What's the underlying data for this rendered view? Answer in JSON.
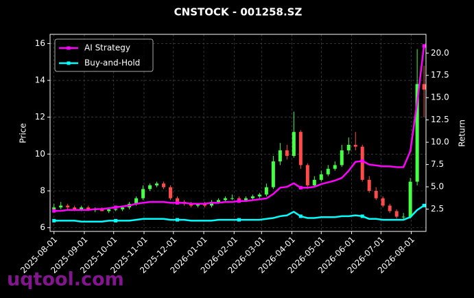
{
  "chart_data": {
    "type": "candlestick",
    "title": "CNSTOCK - 001258.SZ",
    "y_label": "Price",
    "y2_label": "Return",
    "watermark": "uqtool.com",
    "xlim": [
      "2025-07-28",
      "2026-08-16"
    ],
    "xticks": [
      "2025-08-01",
      "2025-09-01",
      "2025-10-01",
      "2025-11-01",
      "2025-12-01",
      "2026-01-01",
      "2026-02-01",
      "2026-03-01",
      "2026-04-01",
      "2026-05-01",
      "2026-06-01",
      "2026-07-01",
      "2026-08-01"
    ],
    "ylim": [
      5.8,
      16.5
    ],
    "yticks": [
      6,
      8,
      10,
      12,
      14,
      16
    ],
    "y2lim": [
      0,
      22.1
    ],
    "y2ticks": [
      2.5,
      {
        "value": 5,
        "label": "5.0"
      },
      7.5,
      {
        "value": 10,
        "label": "10.0"
      },
      12.5,
      {
        "value": 15,
        "label": "15.0"
      },
      17.5,
      {
        "value": 20,
        "label": "20.0"
      }
    ],
    "grid": true,
    "legend": "upper left",
    "up_color": "#44ff44",
    "down_color": "#ff4a4a",
    "x": [
      "2025-08-01",
      "2025-08-08",
      "2025-08-15",
      "2025-08-22",
      "2025-08-29",
      "2025-09-05",
      "2025-09-12",
      "2025-09-19",
      "2025-09-26",
      "2025-10-03",
      "2025-10-10",
      "2025-10-17",
      "2025-10-24",
      "2025-10-31",
      "2025-11-07",
      "2025-11-14",
      "2025-11-21",
      "2025-11-28",
      "2025-12-05",
      "2025-12-12",
      "2025-12-19",
      "2025-12-26",
      "2026-01-02",
      "2026-01-09",
      "2026-01-16",
      "2026-01-23",
      "2026-01-30",
      "2026-02-06",
      "2026-02-13",
      "2026-02-20",
      "2026-02-27",
      "2026-03-06",
      "2026-03-13",
      "2026-03-20",
      "2026-03-27",
      "2026-04-03",
      "2026-04-10",
      "2026-04-17",
      "2026-04-24",
      "2026-05-01",
      "2026-05-08",
      "2026-05-15",
      "2026-05-22",
      "2026-05-29",
      "2026-06-05",
      "2026-06-12",
      "2026-06-19",
      "2026-06-26",
      "2026-07-03",
      "2026-07-10",
      "2026-07-17",
      "2026-07-24",
      "2026-07-31",
      "2026-08-07",
      "2026-08-14"
    ],
    "open": [
      7.0,
      7.1,
      7.2,
      7.1,
      7.0,
      7.1,
      6.95,
      7.0,
      6.9,
      7.0,
      7.0,
      7.1,
      7.3,
      7.6,
      8.1,
      8.3,
      8.4,
      8.2,
      7.6,
      7.4,
      7.3,
      7.2,
      7.3,
      7.2,
      7.4,
      7.5,
      7.6,
      7.6,
      7.5,
      7.6,
      7.7,
      7.8,
      8.2,
      9.6,
      10.2,
      9.9,
      11.2,
      9.4,
      8.3,
      8.6,
      8.9,
      9.2,
      9.4,
      10.2,
      10.5,
      10.4,
      8.6,
      8.0,
      7.6,
      7.2,
      6.9,
      6.6,
      6.6,
      8.5,
      13.8
    ],
    "high": [
      7.3,
      7.4,
      7.3,
      7.2,
      7.2,
      7.2,
      7.1,
      7.1,
      7.05,
      7.1,
      7.2,
      7.4,
      7.7,
      8.3,
      8.4,
      8.5,
      8.5,
      8.3,
      7.7,
      7.5,
      7.4,
      7.3,
      7.4,
      7.5,
      7.6,
      7.7,
      7.8,
      7.7,
      7.7,
      7.8,
      7.9,
      8.4,
      9.9,
      10.6,
      10.5,
      12.3,
      11.3,
      9.5,
      8.8,
      9.1,
      9.4,
      9.6,
      10.5,
      10.9,
      11.2,
      10.5,
      8.8,
      8.2,
      7.7,
      7.3,
      7.0,
      6.8,
      8.7,
      15.7,
      14.8
    ],
    "low": [
      6.9,
      7.0,
      7.0,
      6.9,
      6.9,
      6.9,
      6.85,
      6.9,
      6.8,
      6.9,
      6.9,
      7.0,
      7.2,
      7.5,
      8.0,
      8.2,
      8.1,
      7.5,
      7.3,
      7.2,
      7.1,
      7.1,
      7.1,
      7.1,
      7.3,
      7.4,
      7.5,
      7.4,
      7.4,
      7.5,
      7.6,
      7.7,
      8.1,
      9.4,
      9.7,
      9.8,
      9.2,
      8.1,
      8.2,
      8.5,
      8.8,
      9.1,
      9.3,
      10.0,
      10.2,
      8.5,
      7.9,
      7.5,
      7.1,
      6.8,
      6.5,
      6.4,
      6.5,
      8.3,
      12.0
    ],
    "close": [
      7.1,
      7.2,
      7.1,
      7.0,
      7.1,
      6.95,
      7.0,
      6.9,
      7.0,
      7.0,
      7.1,
      7.3,
      7.6,
      8.1,
      8.3,
      8.4,
      8.2,
      7.6,
      7.4,
      7.3,
      7.2,
      7.3,
      7.2,
      7.4,
      7.5,
      7.6,
      7.6,
      7.5,
      7.6,
      7.7,
      7.8,
      8.2,
      9.6,
      10.2,
      9.9,
      11.2,
      9.4,
      8.3,
      8.6,
      8.9,
      9.2,
      9.4,
      10.2,
      10.5,
      10.4,
      8.6,
      8.0,
      7.6,
      7.2,
      6.9,
      6.6,
      6.6,
      8.5,
      13.8,
      13.5
    ],
    "series": [
      {
        "name": "AI Strategy",
        "color": "#ff00ff",
        "axis": "y2",
        "values": [
          2.3,
          2.3,
          2.4,
          2.4,
          2.4,
          2.4,
          2.5,
          2.5,
          2.6,
          2.7,
          2.8,
          2.9,
          3.1,
          3.2,
          3.3,
          3.3,
          3.3,
          3.2,
          3.2,
          3.2,
          3.1,
          3.1,
          3.1,
          3.2,
          3.2,
          3.3,
          3.3,
          3.4,
          3.4,
          3.5,
          3.6,
          3.7,
          4.2,
          4.9,
          5.0,
          5.4,
          4.9,
          4.9,
          5.0,
          5.3,
          5.5,
          5.7,
          6.0,
          6.8,
          7.8,
          7.9,
          7.5,
          7.4,
          7.3,
          7.3,
          7.2,
          7.2,
          9.0,
          14.5,
          20.8
        ]
      },
      {
        "name": "Buy-and-Hold",
        "color": "#00ffff",
        "axis": "y2",
        "values": [
          1.2,
          1.2,
          1.2,
          1.2,
          1.1,
          1.1,
          1.1,
          1.1,
          1.2,
          1.2,
          1.2,
          1.2,
          1.3,
          1.4,
          1.4,
          1.4,
          1.4,
          1.3,
          1.3,
          1.3,
          1.2,
          1.2,
          1.2,
          1.2,
          1.3,
          1.3,
          1.3,
          1.3,
          1.3,
          1.3,
          1.3,
          1.4,
          1.5,
          1.7,
          1.8,
          2.2,
          1.7,
          1.5,
          1.5,
          1.6,
          1.6,
          1.6,
          1.7,
          1.7,
          1.8,
          1.7,
          1.4,
          1.4,
          1.3,
          1.3,
          1.3,
          1.3,
          1.6,
          2.4,
          2.9
        ]
      }
    ]
  }
}
